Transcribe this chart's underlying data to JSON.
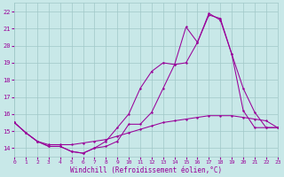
{
  "xlabel": "Windchill (Refroidissement éolien,°C)",
  "xlim": [
    0,
    23
  ],
  "ylim": [
    13.5,
    22.5
  ],
  "yticks": [
    14,
    15,
    16,
    17,
    18,
    19,
    20,
    21,
    22
  ],
  "xticks": [
    0,
    1,
    2,
    3,
    4,
    5,
    6,
    7,
    8,
    9,
    10,
    11,
    12,
    13,
    14,
    15,
    16,
    17,
    18,
    19,
    20,
    21,
    22,
    23
  ],
  "bg_color": "#c8e8e8",
  "grid_color": "#a0c8c8",
  "line_color": "#990099",
  "line1_x": [
    0,
    1,
    2,
    3,
    4,
    5,
    6,
    7,
    8,
    9,
    10,
    11,
    12,
    13,
    14,
    15,
    16,
    17,
    18,
    19,
    20,
    21,
    22,
    23
  ],
  "line1_y": [
    15.5,
    14.9,
    14.4,
    14.1,
    14.1,
    13.8,
    13.7,
    14.0,
    14.1,
    14.4,
    15.4,
    15.4,
    16.1,
    17.5,
    18.9,
    19.0,
    20.2,
    21.8,
    21.6,
    19.5,
    17.5,
    16.1,
    15.2,
    15.2
  ],
  "line2_x": [
    0,
    1,
    2,
    3,
    4,
    5,
    6,
    7,
    8,
    9,
    10,
    11,
    12,
    13,
    14,
    15,
    16,
    17,
    18,
    19,
    20,
    21,
    22,
    23
  ],
  "line2_y": [
    15.5,
    14.9,
    14.4,
    14.2,
    14.2,
    14.2,
    14.3,
    14.4,
    14.5,
    14.7,
    14.9,
    15.1,
    15.3,
    15.5,
    15.6,
    15.7,
    15.8,
    15.9,
    15.9,
    15.9,
    15.8,
    15.7,
    15.6,
    15.2
  ],
  "line3_x": [
    0,
    1,
    2,
    3,
    4,
    5,
    6,
    7,
    8,
    9,
    10,
    11,
    12,
    13,
    14,
    15,
    16,
    17,
    18,
    19,
    20,
    21,
    22,
    23
  ],
  "line3_y": [
    15.5,
    14.9,
    14.4,
    14.1,
    14.1,
    13.8,
    13.7,
    14.0,
    14.4,
    15.2,
    16.0,
    17.5,
    18.5,
    19.0,
    18.9,
    21.1,
    20.2,
    21.9,
    21.5,
    19.5,
    16.2,
    15.2,
    15.2,
    15.2
  ]
}
